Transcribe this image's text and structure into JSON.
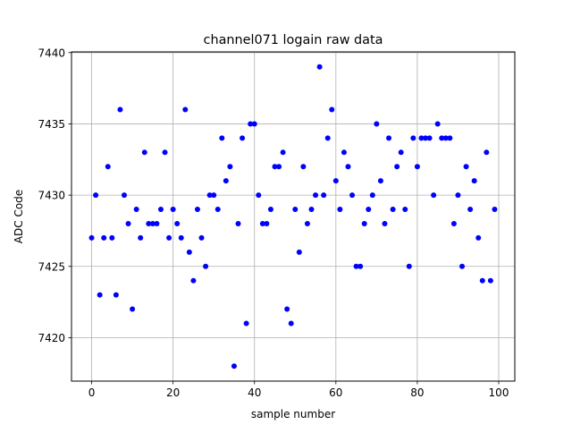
{
  "chart_data": {
    "type": "scatter",
    "title": "channel071 logain raw data",
    "xlabel": "sample number",
    "ylabel": "ADC Code",
    "xlim": [
      -4.95,
      103.95
    ],
    "ylim": [
      7416.95,
      7440.05
    ],
    "xticks": [
      0,
      20,
      40,
      60,
      80,
      100
    ],
    "yticks": [
      7420,
      7425,
      7430,
      7435,
      7440
    ],
    "grid": true,
    "marker_color": "#0000ff",
    "x": [
      0,
      1,
      2,
      3,
      4,
      5,
      6,
      7,
      8,
      9,
      10,
      11,
      12,
      13,
      14,
      15,
      16,
      17,
      18,
      19,
      20,
      21,
      22,
      23,
      24,
      25,
      26,
      27,
      28,
      29,
      30,
      31,
      32,
      33,
      34,
      35,
      36,
      37,
      38,
      39,
      40,
      41,
      42,
      43,
      44,
      45,
      46,
      47,
      48,
      49,
      50,
      51,
      52,
      53,
      54,
      55,
      56,
      57,
      58,
      59,
      60,
      61,
      62,
      63,
      64,
      65,
      66,
      67,
      68,
      69,
      70,
      71,
      72,
      73,
      74,
      75,
      76,
      77,
      78,
      79,
      80,
      81,
      82,
      83,
      84,
      85,
      86,
      87,
      88,
      89,
      90,
      91,
      92,
      93,
      94,
      95,
      96,
      97,
      98,
      99
    ],
    "y": [
      7427,
      7430,
      7423,
      7427,
      7432,
      7427,
      7423,
      7436,
      7430,
      7428,
      7422,
      7429,
      7427,
      7433,
      7428,
      7428,
      7428,
      7429,
      7433,
      7427,
      7429,
      7428,
      7427,
      7436,
      7426,
      7424,
      7429,
      7427,
      7425,
      7430,
      7430,
      7429,
      7434,
      7431,
      7432,
      7418,
      7428,
      7434,
      7421,
      7435,
      7435,
      7430,
      7428,
      7428,
      7429,
      7432,
      7432,
      7433,
      7422,
      7421,
      7429,
      7426,
      7432,
      7428,
      7429,
      7430,
      7439,
      7430,
      7434,
      7436,
      7431,
      7429,
      7433,
      7432,
      7430,
      7425,
      7425,
      7428,
      7429,
      7430,
      7435,
      7431,
      7428,
      7434,
      7429,
      7432,
      7433,
      7429,
      7425,
      7434,
      7432,
      7434,
      7434,
      7434,
      7430,
      7435,
      7434,
      7434,
      7434,
      7428,
      7430,
      7425,
      7432,
      7429,
      7431,
      7427,
      7424,
      7433,
      7424,
      7429
    ]
  }
}
